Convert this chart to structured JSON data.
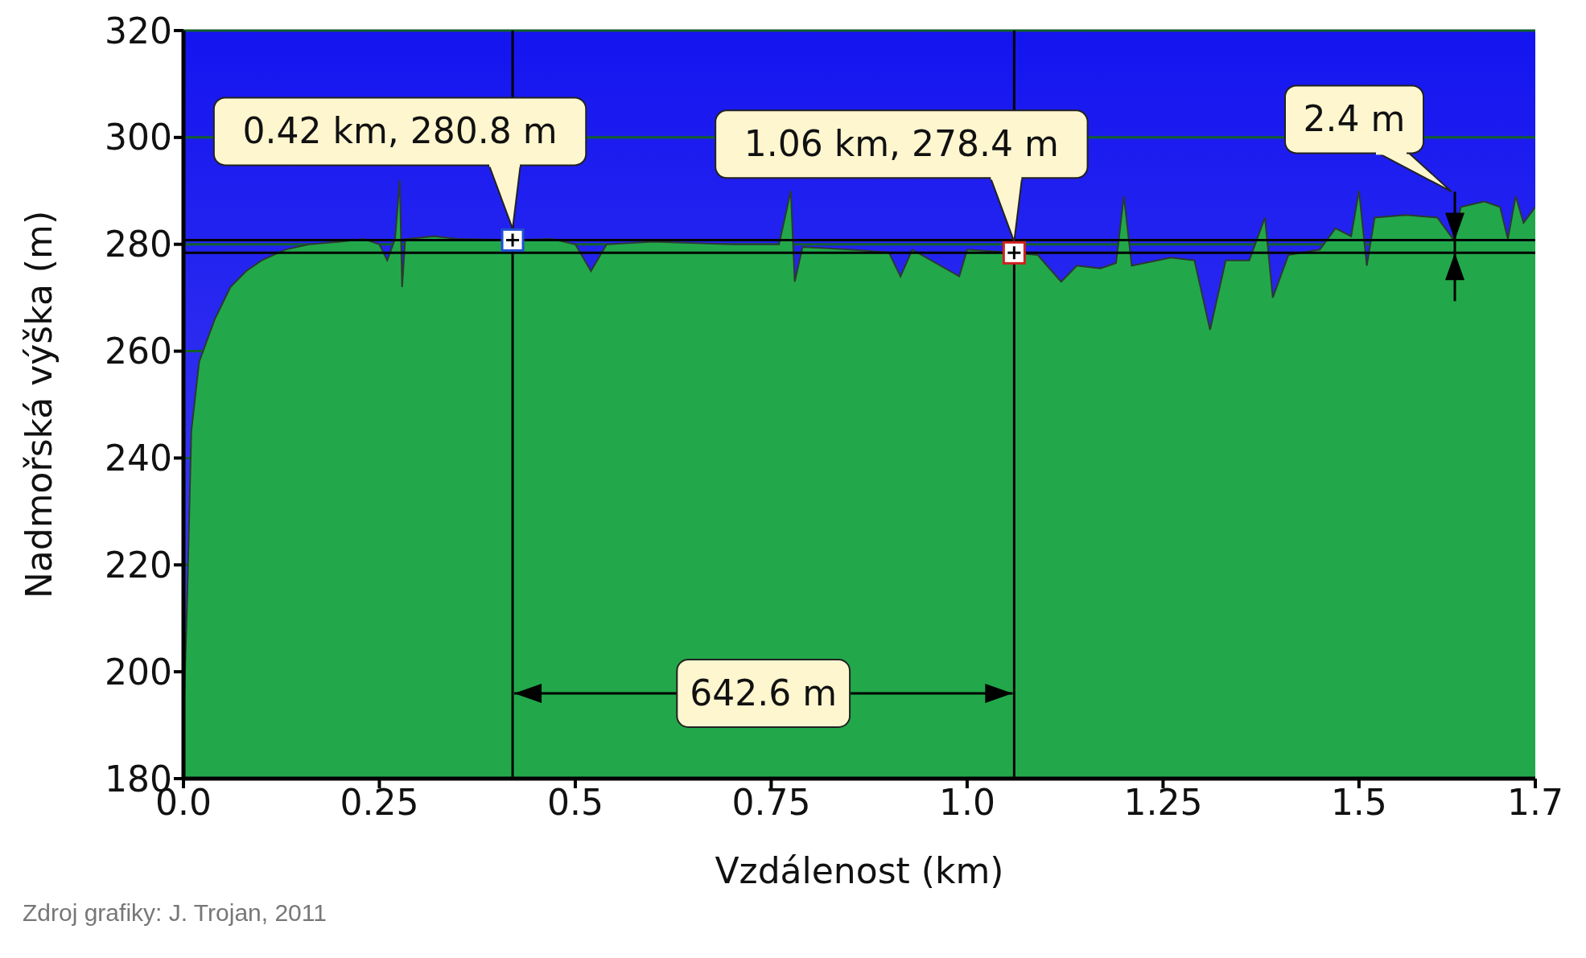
{
  "chart_data": {
    "type": "area",
    "xlabel": "Vzdálenost  (km)",
    "ylabel": "Nadmořská výška (m)",
    "color": "#22a84a",
    "x": [
      0,
      0.005,
      0.01,
      0.02,
      0.04,
      0.06,
      0.08,
      0.1,
      0.13,
      0.16,
      0.2,
      0.23,
      0.25,
      0.26,
      0.27,
      0.276,
      0.279,
      0.283,
      0.32,
      0.35,
      0.42,
      0.47,
      0.5,
      0.52,
      0.54,
      0.6,
      0.7,
      0.76,
      0.775,
      0.78,
      0.79,
      0.85,
      0.9,
      0.915,
      0.93,
      0.99,
      1.0,
      1.06,
      1.09,
      1.12,
      1.14,
      1.17,
      1.19,
      1.2,
      1.21,
      1.26,
      1.29,
      1.31,
      1.33,
      1.36,
      1.38,
      1.39,
      1.41,
      1.45,
      1.47,
      1.49,
      1.5,
      1.51,
      1.52,
      1.56,
      1.6,
      1.62,
      1.63,
      1.66,
      1.68,
      1.69,
      1.7,
      1.71,
      1.725
    ],
    "values": [
      190,
      215,
      245,
      258,
      266,
      272,
      275,
      277,
      279,
      280,
      280.5,
      281,
      280,
      277,
      281,
      292,
      272,
      281,
      281.5,
      281,
      280.8,
      281,
      280,
      275,
      280,
      280.5,
      280,
      280,
      290,
      273,
      279.5,
      279,
      278.5,
      274,
      279,
      274,
      279,
      278.4,
      278,
      273,
      276,
      275.5,
      276.5,
      289,
      276,
      277.5,
      277,
      264,
      277,
      277,
      285,
      270,
      278,
      279,
      283,
      281.5,
      290,
      276,
      285,
      285.5,
      285,
      281,
      287,
      288,
      287,
      281,
      289,
      284,
      287
    ],
    "xlim": [
      0,
      1.725
    ],
    "xticks": [
      {
        "value": 0,
        "label": "0.0"
      },
      0.25,
      0.5,
      0.75,
      {
        "value": 1,
        "label": "1.0"
      },
      1.25,
      1.5,
      {
        "value": 1.725,
        "label": "1.7"
      }
    ],
    "ylim": [
      180,
      320
    ],
    "yticks": [
      180,
      200,
      220,
      240,
      260,
      280,
      300,
      320
    ],
    "grid": "y",
    "ref_lines": [
      {
        "axis": "x",
        "value": 0.42,
        "color": "#000000"
      },
      {
        "axis": "x",
        "value": 1.06,
        "color": "#000000"
      },
      {
        "axis": "y",
        "value": 280.8,
        "color": "#000000"
      },
      {
        "axis": "y",
        "value": 278.4,
        "color": "#000000"
      }
    ],
    "annotations": [
      {
        "text": "0.42 km, 280.8 m",
        "x": 0.42,
        "y": 280.8
      },
      {
        "text": "1.06 km, 278.4 m",
        "x": 1.06,
        "y": 278.4
      },
      "642.6 m",
      "2.4 m",
      "Zdroj grafiky:  J. Trojan, 2011"
    ]
  }
}
